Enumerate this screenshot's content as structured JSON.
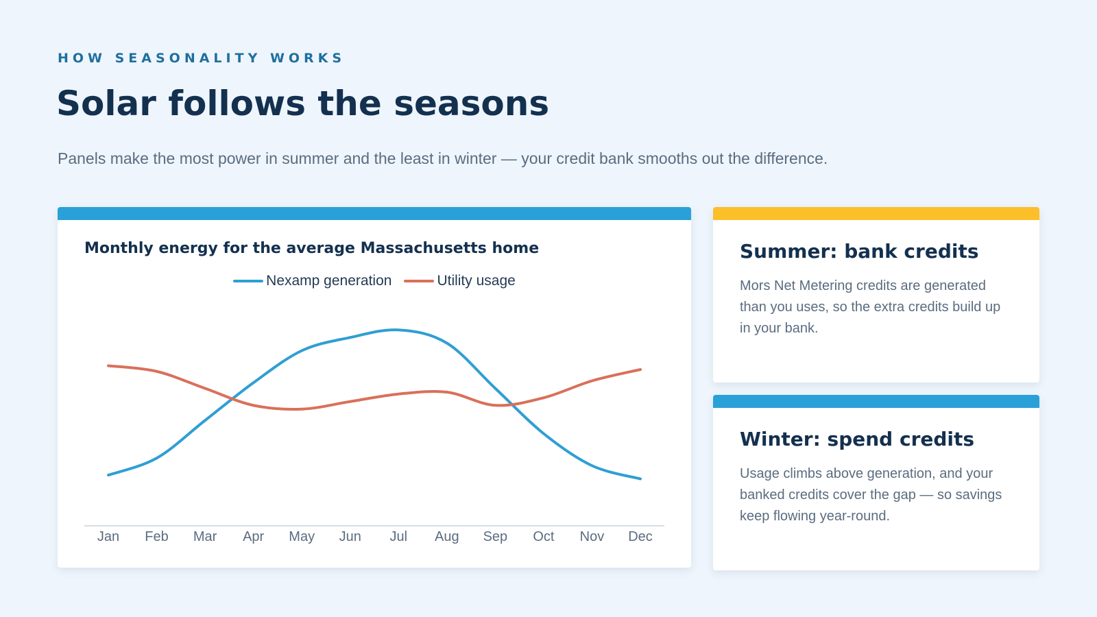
{
  "header": {
    "eyebrow": "HOW SEASONALITY WORKS",
    "title": "Solar follows the seasons",
    "subtitle": "Panels make the most power in summer and the least in winter — your credit bank smooths out the difference."
  },
  "colors": {
    "background": "#eef5fc",
    "accent_blue": "#2aa0d8",
    "accent_yellow": "#fbbf2a",
    "generation_line": "#2f9fd3",
    "usage_line": "#d9705a"
  },
  "chart_data": {
    "type": "line",
    "title": "Monthly energy for the average Massachusetts home",
    "xlabel": "",
    "ylabel": "",
    "categories": [
      "Jan",
      "Feb",
      "Mar",
      "Apr",
      "May",
      "Jun",
      "Jul",
      "Aug",
      "Sep",
      "Oct",
      "Nov",
      "Dec"
    ],
    "series": [
      {
        "name": "Nexamp generation",
        "color": "#2f9fd3",
        "values": [
          16,
          25,
          45,
          65,
          82,
          89,
          93,
          86,
          62,
          38,
          21,
          14
        ]
      },
      {
        "name": "Utility usage",
        "color": "#d9705a",
        "values": [
          74,
          71,
          62,
          53,
          51,
          55,
          59,
          60,
          53,
          57,
          66,
          72
        ]
      }
    ],
    "ylim": [
      0,
      100
    ],
    "grid": false,
    "legend": "top-center"
  },
  "cards": {
    "summer": {
      "title": "Summer: bank credits",
      "body": "Mors Net Metering credits are generated than you uses, so the extra credits build up in your bank."
    },
    "winter": {
      "title": "Winter: spend credits",
      "body": "Usage climbs above generation, and your banked credits cover the gap — so savings keep flowing year-round."
    }
  }
}
